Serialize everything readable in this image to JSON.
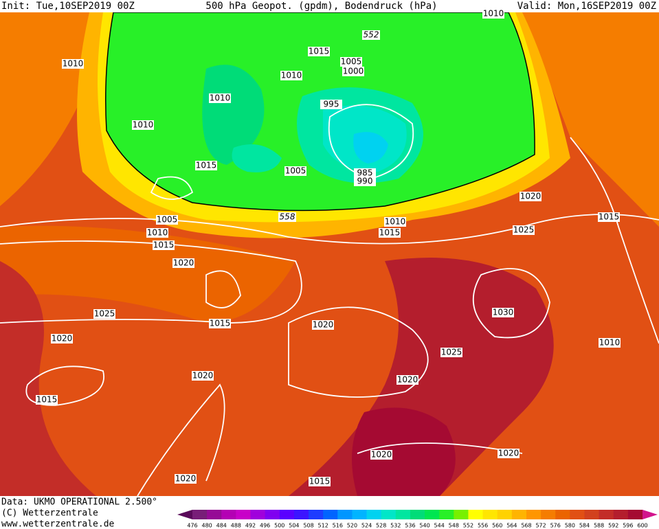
{
  "header": {
    "init": "Init: Tue,10SEP2019 00Z",
    "title": "500 hPa Geopot. (gpdm), Bodendruck (hPa)",
    "valid": "Valid: Mon,16SEP2019 00Z"
  },
  "isobar_labels": [
    1010,
    1015,
    1005,
    1000,
    1010,
    1010,
    1010,
    995,
    1010,
    1015,
    1005,
    985,
    990,
    1020,
    1015,
    1005,
    1010,
    1010,
    1015,
    1025,
    1015,
    1020,
    1025,
    1015,
    1020,
    1030,
    1020,
    1010,
    1025,
    1020,
    1020,
    1015,
    1020,
    1020,
    1020,
    1015
  ],
  "contour_labels": [
    552,
    558
  ],
  "colorbar": {
    "labels": [
      476,
      480,
      484,
      488,
      492,
      496,
      500,
      504,
      508,
      512,
      516,
      520,
      524,
      528,
      532,
      536,
      540,
      544,
      548,
      552,
      556,
      560,
      564,
      568,
      572,
      576,
      580,
      584,
      588,
      592,
      596,
      600
    ],
    "colors": [
      "#5a0a5a",
      "#781e78",
      "#960a96",
      "#b400b4",
      "#c800c8",
      "#a000dc",
      "#8000f0",
      "#5a00ff",
      "#3c14ff",
      "#1e3cff",
      "#0064ff",
      "#0096ff",
      "#00b4ff",
      "#00d2f0",
      "#00e6c8",
      "#00e6a0",
      "#00dc78",
      "#00e650",
      "#28f028",
      "#78f000",
      "#ffff00",
      "#ffe600",
      "#ffd200",
      "#ffb400",
      "#ff9600",
      "#f57d00",
      "#eb6400",
      "#e15014",
      "#d2411e",
      "#c32d28",
      "#b41e2d",
      "#a50a32",
      "#d2148c"
    ]
  },
  "footer": {
    "data": "Data: UKMO OPERATIONAL 2.500°",
    "copyright": "(C) Wetterzentrale",
    "url": "www.wetterzentrale.de"
  }
}
